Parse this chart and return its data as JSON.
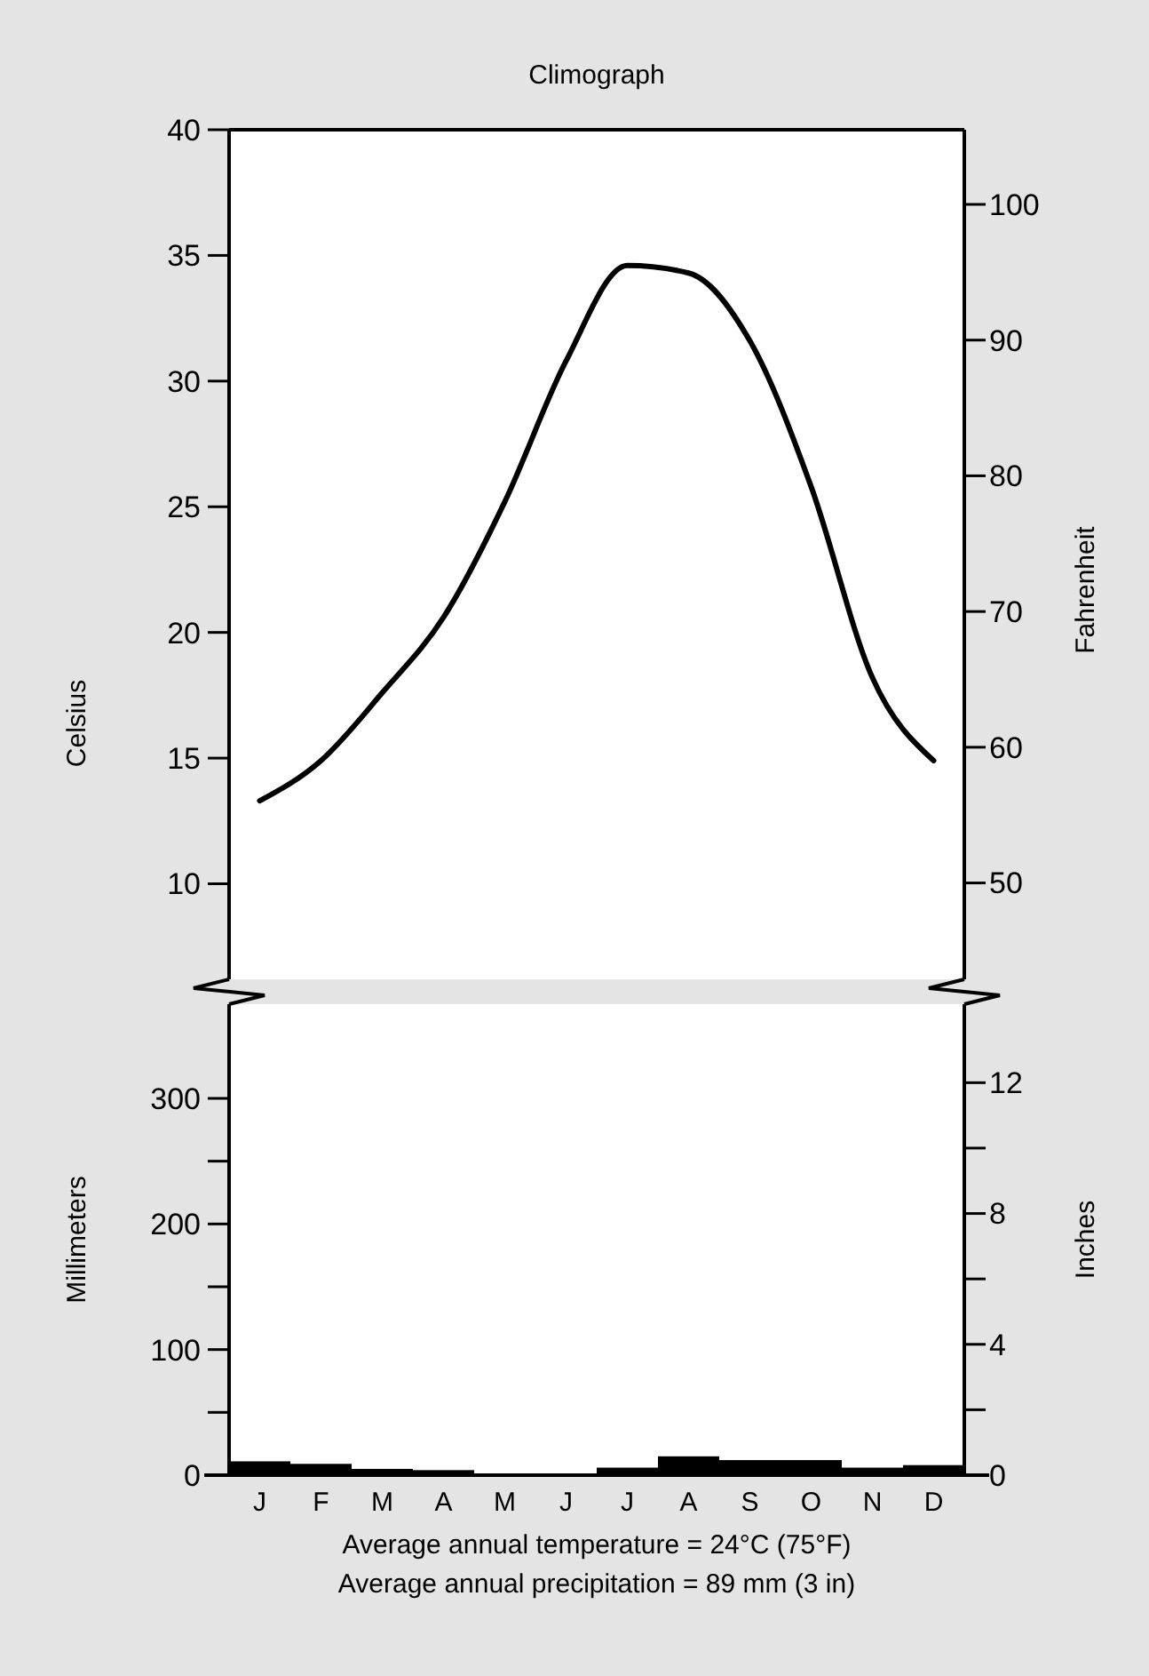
{
  "chart_data": [
    {
      "type": "line",
      "title": "Climograph",
      "ylabel": "Celsius",
      "y2label": "Fahrenheit",
      "categories": [
        null,
        null,
        null,
        null,
        null,
        null,
        null,
        null,
        null,
        null,
        null,
        null
      ],
      "values": [
        13.3,
        14.9,
        17.6,
        20.6,
        25.2,
        30.8,
        34.6,
        34.3,
        31.6,
        25.8,
        18.2,
        14.9
      ],
      "color": "#000000",
      "ylim": [
        6.2,
        40
      ],
      "yticks": [
        10,
        15,
        20,
        25,
        30,
        35,
        40
      ],
      "y2lim": [
        42.9,
        105.5
      ],
      "y2ticks": [
        50,
        60,
        70,
        80,
        90,
        100
      ],
      "tick_labels": "y"
    },
    {
      "type": "bar",
      "ylabel": "Millimeters",
      "y2label": "Inches",
      "categories": [
        "J",
        "F",
        "M",
        "A",
        "M",
        "J",
        "J",
        "A",
        "S",
        "O",
        "N",
        "D"
      ],
      "values": [
        11,
        9,
        5,
        4,
        0,
        0,
        6,
        15,
        12,
        12,
        6,
        8
      ],
      "color": "#000000",
      "ylim": [
        0,
        375
      ],
      "yticks": [
        0,
        {
          "value": 50,
          "label": null
        },
        100,
        {
          "value": 150,
          "label": null
        },
        200,
        {
          "value": 250,
          "label": null
        },
        300
      ],
      "y2lim": [
        0,
        14.4
      ],
      "y2ticks": [
        0,
        {
          "value": 2,
          "label": null
        },
        4,
        {
          "value": 6,
          "label": null
        },
        8,
        {
          "value": 10,
          "label": null
        },
        12
      ],
      "annotations": [
        "Average annual temperature = 24°C (75°F)",
        "Average annual precipitation = 89 mm (3 in)"
      ]
    }
  ]
}
